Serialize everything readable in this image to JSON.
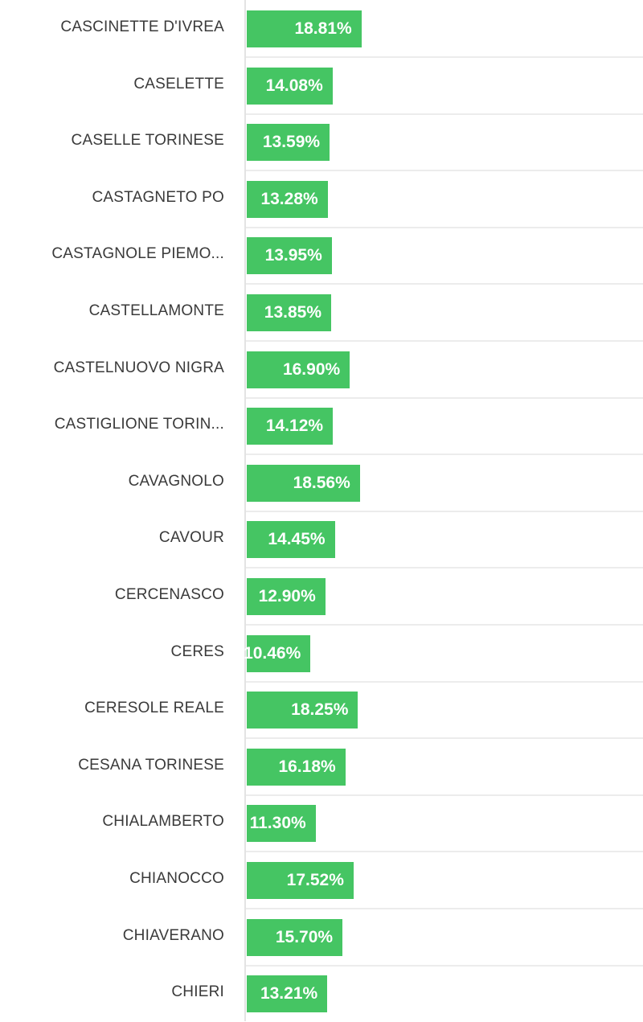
{
  "chart_data": {
    "type": "bar",
    "orientation": "horizontal",
    "categories": [
      "CASCINETTE D'IVREA",
      "CASELETTE",
      "CASELLE TORINESE",
      "CASTAGNETO PO",
      "CASTAGNOLE PIEMO...",
      "CASTELLAMONTE",
      "CASTELNUOVO NIGRA",
      "CASTIGLIONE TORIN...",
      "CAVAGNOLO",
      "CAVOUR",
      "CERCENASCO",
      "CERES",
      "CERESOLE REALE",
      "CESANA TORINESE",
      "CHIALAMBERTO",
      "CHIANOCCO",
      "CHIAVERANO",
      "CHIERI"
    ],
    "values": [
      18.81,
      14.08,
      13.59,
      13.28,
      13.95,
      13.85,
      16.9,
      14.12,
      18.56,
      14.45,
      12.9,
      10.46,
      18.25,
      16.18,
      11.3,
      17.52,
      15.7,
      13.21
    ],
    "value_labels": [
      "18.81%",
      "14.08%",
      "13.59%",
      "13.28%",
      "13.95%",
      "13.85%",
      "16.90%",
      "14.12%",
      "18.56%",
      "14.45%",
      "12.90%",
      "10.46%",
      "18.25%",
      "16.18%",
      "11.30%",
      "17.52%",
      "15.70%",
      "13.21%"
    ],
    "xlim": [
      0,
      65
    ],
    "bar_color": "#45c563",
    "label_color": "#3a3a3a",
    "value_label_color": "#ffffff",
    "grid": false,
    "legend": "none"
  }
}
